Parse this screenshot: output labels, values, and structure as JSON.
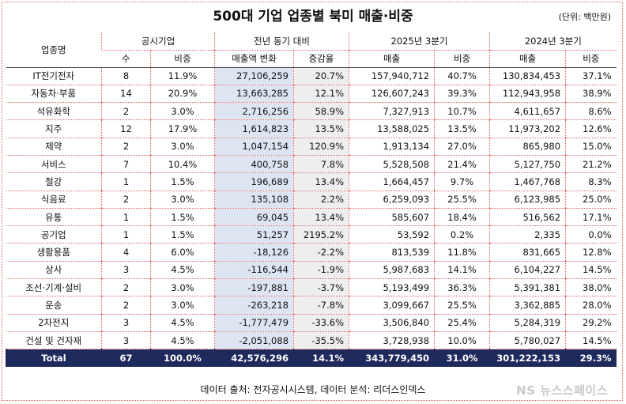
{
  "title": "500대 기업 업종별 북미 매출·비중",
  "unit": "(단위: 백만원)",
  "headers": {
    "industry": "업종명",
    "group1": "공시기업",
    "group2": "전년 동기 대비",
    "group3": "2025년 3분기",
    "group4": "2024년 3분기",
    "count": "수",
    "share1": "비중",
    "change": "매출액 변화",
    "rate": "증감율",
    "sales25": "매출",
    "share25": "비중",
    "sales24": "매출",
    "share24": "비중"
  },
  "rows": [
    {
      "name": "IT전기전자",
      "count": "8",
      "share": "11.9%",
      "change": "27,106,259",
      "rate": "20.7%",
      "sales25": "157,940,712",
      "share25": "40.7%",
      "sales24": "130,834,453",
      "share24": "37.1%"
    },
    {
      "name": "자동차·부품",
      "count": "14",
      "share": "20.9%",
      "change": "13,663,285",
      "rate": "12.1%",
      "sales25": "126,607,243",
      "share25": "39.3%",
      "sales24": "112,943,958",
      "share24": "38.9%"
    },
    {
      "name": "석유화학",
      "count": "2",
      "share": "3.0%",
      "change": "2,716,256",
      "rate": "58.9%",
      "sales25": "7,327,913",
      "share25": "10.7%",
      "sales24": "4,611,657",
      "share24": "8.6%"
    },
    {
      "name": "지주",
      "count": "12",
      "share": "17.9%",
      "change": "1,614,823",
      "rate": "13.5%",
      "sales25": "13,588,025",
      "share25": "13.5%",
      "sales24": "11,973,202",
      "share24": "12.6%"
    },
    {
      "name": "제약",
      "count": "2",
      "share": "3.0%",
      "change": "1,047,154",
      "rate": "120.9%",
      "sales25": "1,913,134",
      "share25": "27.0%",
      "sales24": "865,980",
      "share24": "15.0%"
    },
    {
      "name": "서비스",
      "count": "7",
      "share": "10.4%",
      "change": "400,758",
      "rate": "7.8%",
      "sales25": "5,528,508",
      "share25": "21.4%",
      "sales24": "5,127,750",
      "share24": "21.2%"
    },
    {
      "name": "철강",
      "count": "1",
      "share": "1.5%",
      "change": "196,689",
      "rate": "13.4%",
      "sales25": "1,664,457",
      "share25": "9.7%",
      "sales24": "1,467,768",
      "share24": "8.3%"
    },
    {
      "name": "식음료",
      "count": "2",
      "share": "3.0%",
      "change": "135,108",
      "rate": "2.2%",
      "sales25": "6,259,093",
      "share25": "25.5%",
      "sales24": "6,123,985",
      "share24": "25.0%"
    },
    {
      "name": "유통",
      "count": "1",
      "share": "1.5%",
      "change": "69,045",
      "rate": "13.4%",
      "sales25": "585,607",
      "share25": "18.4%",
      "sales24": "516,562",
      "share24": "17.1%"
    },
    {
      "name": "공기업",
      "count": "1",
      "share": "1.5%",
      "change": "51,257",
      "rate": "2195.2%",
      "sales25": "53,592",
      "share25": "0.2%",
      "sales24": "2,335",
      "share24": "0.0%"
    },
    {
      "name": "생활용품",
      "count": "4",
      "share": "6.0%",
      "change": "-18,126",
      "rate": "-2.2%",
      "sales25": "813,539",
      "share25": "11.8%",
      "sales24": "831,665",
      "share24": "12.8%"
    },
    {
      "name": "상사",
      "count": "3",
      "share": "4.5%",
      "change": "-116,544",
      "rate": "-1.9%",
      "sales25": "5,987,683",
      "share25": "14.1%",
      "sales24": "6,104,227",
      "share24": "14.5%"
    },
    {
      "name": "조선·기계·설비",
      "count": "2",
      "share": "3.0%",
      "change": "-197,881",
      "rate": "-3.7%",
      "sales25": "5,193,499",
      "share25": "36.3%",
      "sales24": "5,391,381",
      "share24": "38.0%"
    },
    {
      "name": "운송",
      "count": "2",
      "share": "3.0%",
      "change": "-263,218",
      "rate": "-7.8%",
      "sales25": "3,099,667",
      "share25": "25.5%",
      "sales24": "3,362,885",
      "share24": "28.0%"
    },
    {
      "name": "2차전지",
      "count": "3",
      "share": "4.5%",
      "change": "-1,777,479",
      "rate": "-33.6%",
      "sales25": "3,506,840",
      "share25": "25.4%",
      "sales24": "5,284,319",
      "share24": "29.2%"
    },
    {
      "name": "건설 및 건자재",
      "count": "3",
      "share": "4.5%",
      "change": "-2,051,088",
      "rate": "-35.5%",
      "sales25": "3,728,938",
      "share25": "10.0%",
      "sales24": "5,780,027",
      "share24": "14.5%"
    }
  ],
  "total": {
    "name": "Total",
    "count": "67",
    "share": "100.0%",
    "change": "42,576,296",
    "rate": "14.1%",
    "sales25": "343,779,450",
    "share25": "31.0%",
    "sales24": "301,222,153",
    "share24": "29.3%"
  },
  "footer": "데이터 출처: 전자공시시스템, 데이터 분석: 리더스인덱스",
  "watermark": "NS 뉴스스페이스"
}
